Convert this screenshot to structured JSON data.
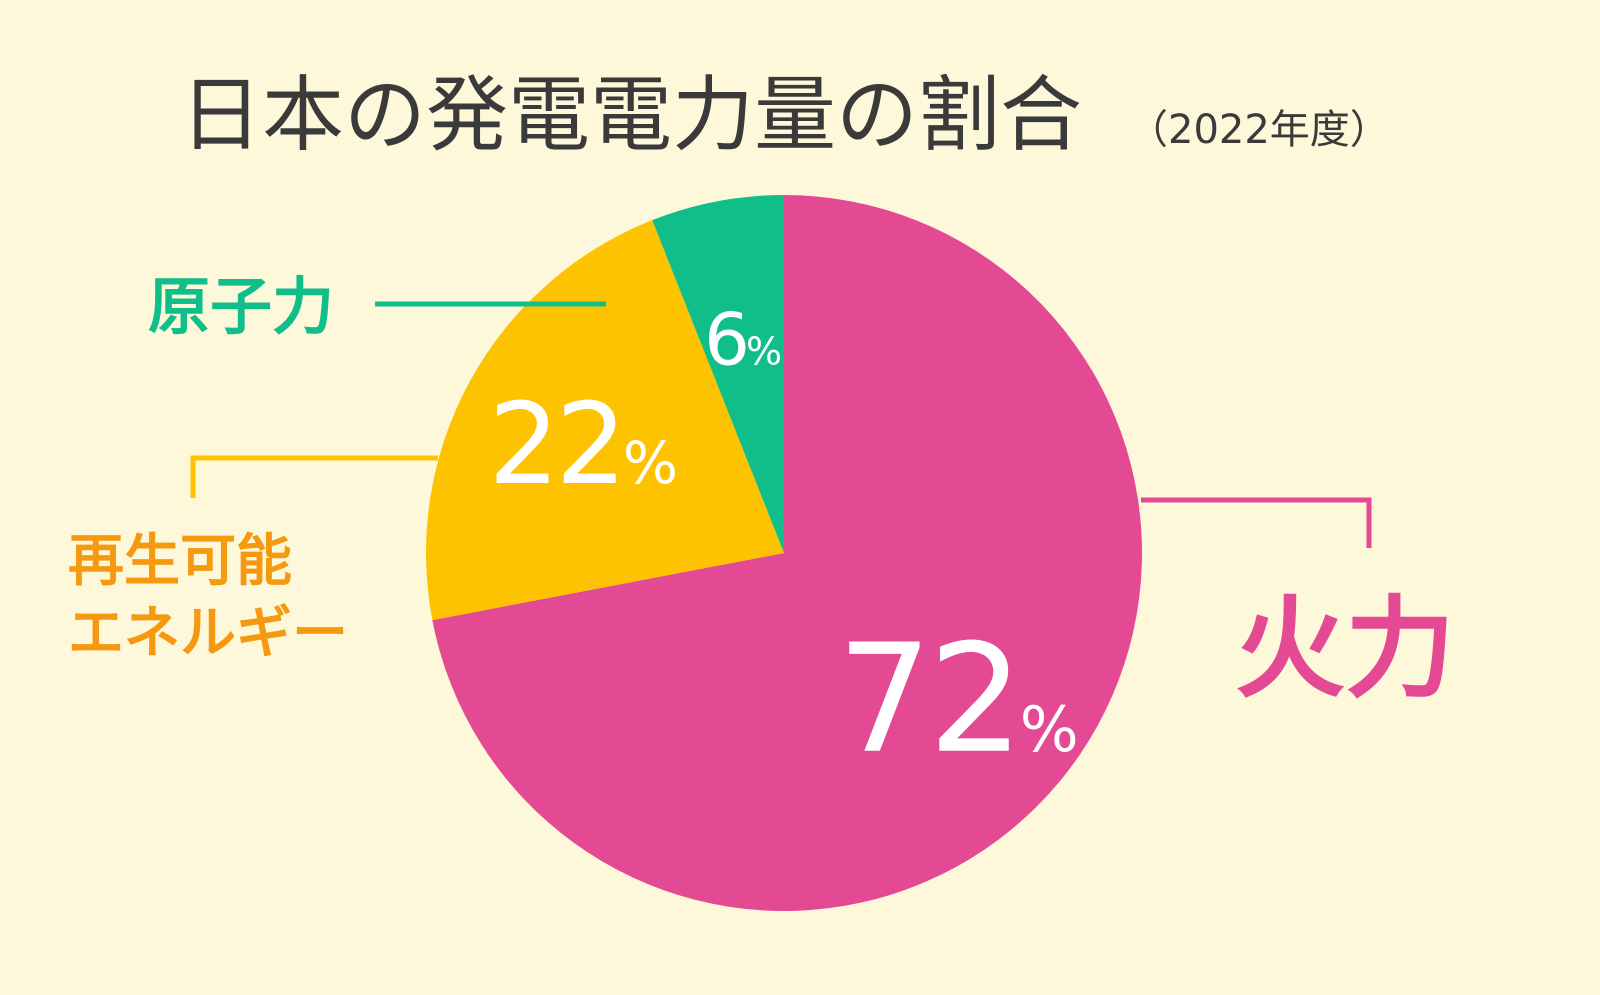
{
  "title": {
    "main": "日本の発電電力量の割合",
    "sub": "（2022年度）"
  },
  "chart_data": {
    "type": "pie",
    "title": "日本の発電電力量の割合（2022年度）",
    "slices": [
      {
        "label": "火力",
        "value": 72,
        "display": "72",
        "unit": "%",
        "color": "#E34A93"
      },
      {
        "label": "再生可能エネルギー",
        "label_lines": [
          "再生可能",
          "エネルギー"
        ],
        "value": 22,
        "display": "22",
        "unit": "%",
        "color": "#FDC300"
      },
      {
        "label": "原子力",
        "value": 6,
        "display": "6",
        "unit": "%",
        "color": "#0FBE88"
      }
    ],
    "start_angle_deg": 0,
    "direction": "clockwise",
    "legend": "callout-labels"
  },
  "colors": {
    "background": "#FEF8DA",
    "title": "#3A3A3A",
    "renewable_label": "#F59A10"
  }
}
